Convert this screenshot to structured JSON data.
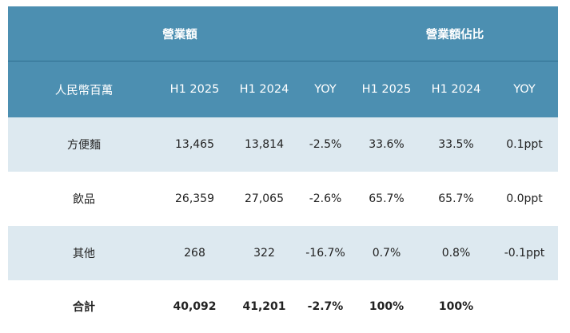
{
  "header": {
    "group_left": "營業額",
    "group_right": "營業額佔比",
    "columns": [
      "人民幣百萬",
      "H1 2025",
      "H1 2024",
      "YOY",
      "H1 2025",
      "H1 2024",
      "YOY"
    ]
  },
  "rows": [
    {
      "label": "方便麵",
      "v1": "13,465",
      "v2": "13,814",
      "yoy": "-2.5%",
      "s1": "33.6%",
      "s2": "33.5%",
      "syoy": "0.1ppt"
    },
    {
      "label": "飲品",
      "v1": "26,359",
      "v2": "27,065",
      "yoy": "-2.6%",
      "s1": "65.7%",
      "s2": "65.7%",
      "syoy": "0.0ppt"
    },
    {
      "label": "其他",
      "v1": "268",
      "v2": "322",
      "yoy": "-16.7%",
      "s1": "0.7%",
      "s2": "0.8%",
      "syoy": "-0.1ppt"
    }
  ],
  "total": {
    "label": "合計",
    "v1": "40,092",
    "v2": "41,201",
    "yoy": "-2.7%",
    "s1": "100%",
    "s2": "100%",
    "syoy": ""
  },
  "colors": {
    "header": "#4c8fb1",
    "alt_row": "#dde9f0",
    "divider": "#1f4f6a"
  }
}
